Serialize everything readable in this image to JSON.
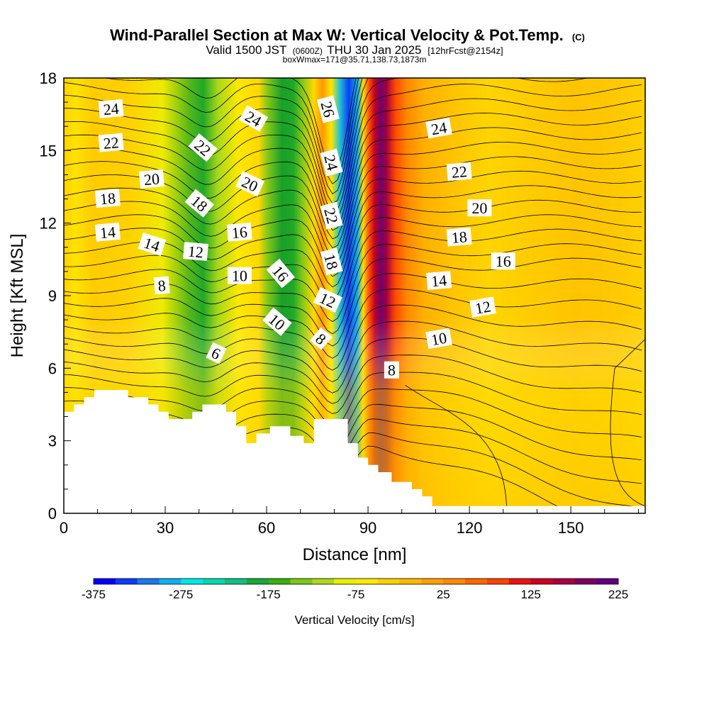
{
  "chart_data": {
    "type": "contour_cross_section",
    "title": "Wind-Parallel Section at Max W: Vertical Velocity & Pot.Temp.",
    "title_mark": "(C)",
    "subtitle": {
      "prefix": "Valid 1500 JST",
      "utc": "(0600Z)",
      "date": "THU 30 Jan 2025",
      "forecast": "[12hrFcst@2154z]"
    },
    "info_line": "boxWmax=171@35.71,138.73,1873m",
    "xlabel": "Distance [nm]",
    "ylabel": "Height [Kft MSL]",
    "xlim": [
      0,
      172
    ],
    "ylim": [
      0,
      18
    ],
    "x_ticks": [
      0,
      30,
      60,
      90,
      120,
      150
    ],
    "y_ticks": [
      0,
      3,
      6,
      9,
      12,
      15,
      18
    ],
    "colorbar": {
      "label": "Vertical Velocity [cm/s]",
      "tick_labels": [
        "-375",
        "-275",
        "-175",
        "-75",
        "25",
        "125",
        "225"
      ],
      "colors": [
        "#0000ff",
        "#0a3cf5",
        "#1a78f0",
        "#10b0f0",
        "#00e8e8",
        "#00d8b0",
        "#10c080",
        "#18a838",
        "#38b010",
        "#78c818",
        "#b0d818",
        "#e8f000",
        "#ffea00",
        "#ffd000",
        "#ffb800",
        "#ffa000",
        "#ff8800",
        "#ff6600",
        "#ff4400",
        "#ee1010",
        "#cc0020",
        "#a80040",
        "#800060",
        "#600080"
      ]
    },
    "theta_contour_labels": [
      {
        "text": "24",
        "x": 14,
        "y": 16.7,
        "rot": -5
      },
      {
        "text": "22",
        "x": 14,
        "y": 15.3,
        "rot": -5
      },
      {
        "text": "20",
        "x": 26,
        "y": 13.8,
        "rot": -5
      },
      {
        "text": "18",
        "x": 13,
        "y": 13.0,
        "rot": -5
      },
      {
        "text": "14",
        "x": 13,
        "y": 11.6,
        "rot": -5
      },
      {
        "text": "14",
        "x": 26,
        "y": 11.1,
        "rot": 18
      },
      {
        "text": "8",
        "x": 29,
        "y": 9.4,
        "rot": -5
      },
      {
        "text": "24",
        "x": 56,
        "y": 16.3,
        "rot": 30
      },
      {
        "text": "22",
        "x": 41,
        "y": 15.1,
        "rot": 40
      },
      {
        "text": "20",
        "x": 55,
        "y": 13.6,
        "rot": 25
      },
      {
        "text": "18",
        "x": 40,
        "y": 12.8,
        "rot": 40
      },
      {
        "text": "16",
        "x": 52,
        "y": 11.6,
        "rot": -5
      },
      {
        "text": "12",
        "x": 39,
        "y": 10.8,
        "rot": 5
      },
      {
        "text": "10",
        "x": 52,
        "y": 9.8,
        "rot": 0
      },
      {
        "text": "16",
        "x": 64,
        "y": 9.9,
        "rot": 50
      },
      {
        "text": "10",
        "x": 63,
        "y": 7.9,
        "rot": 40
      },
      {
        "text": "6",
        "x": 45,
        "y": 6.6,
        "rot": 25
      },
      {
        "text": "26",
        "x": 78,
        "y": 16.7,
        "rot": 75
      },
      {
        "text": "24",
        "x": 79,
        "y": 14.5,
        "rot": 75
      },
      {
        "text": "22",
        "x": 79,
        "y": 12.3,
        "rot": 75
      },
      {
        "text": "18",
        "x": 79,
        "y": 10.4,
        "rot": 75
      },
      {
        "text": "12",
        "x": 78,
        "y": 8.8,
        "rot": 25
      },
      {
        "text": "8",
        "x": 76,
        "y": 7.2,
        "rot": 40
      },
      {
        "text": "24",
        "x": 111,
        "y": 15.9,
        "rot": -10
      },
      {
        "text": "22",
        "x": 117,
        "y": 14.1,
        "rot": -5
      },
      {
        "text": "20",
        "x": 123,
        "y": 12.6,
        "rot": 0
      },
      {
        "text": "18",
        "x": 117,
        "y": 11.4,
        "rot": -5
      },
      {
        "text": "16",
        "x": 130,
        "y": 10.4,
        "rot": 0
      },
      {
        "text": "14",
        "x": 111,
        "y": 9.6,
        "rot": -5
      },
      {
        "text": "12",
        "x": 124,
        "y": 8.5,
        "rot": -10
      },
      {
        "text": "10",
        "x": 111,
        "y": 7.2,
        "rot": -10
      },
      {
        "text": "8",
        "x": 97,
        "y": 5.9,
        "rot": 0
      }
    ],
    "terrain_kft": [
      [
        0,
        4.2
      ],
      [
        3,
        4.2
      ],
      [
        3,
        4.5
      ],
      [
        6,
        4.5
      ],
      [
        6,
        4.8
      ],
      [
        9,
        4.8
      ],
      [
        9,
        5.1
      ],
      [
        19,
        5.1
      ],
      [
        19,
        4.8
      ],
      [
        25,
        4.8
      ],
      [
        25,
        4.5
      ],
      [
        28,
        4.5
      ],
      [
        28,
        4.2
      ],
      [
        31,
        4.2
      ],
      [
        31,
        3.9
      ],
      [
        38,
        3.9
      ],
      [
        38,
        4.2
      ],
      [
        41,
        4.2
      ],
      [
        41,
        4.5
      ],
      [
        48,
        4.5
      ],
      [
        48,
        4.2
      ],
      [
        51,
        4.2
      ],
      [
        51,
        3.6
      ],
      [
        54,
        3.6
      ],
      [
        54,
        2.9
      ],
      [
        57,
        2.9
      ],
      [
        57,
        3.3
      ],
      [
        61,
        3.3
      ],
      [
        61,
        3.6
      ],
      [
        67,
        3.6
      ],
      [
        67,
        3.2
      ],
      [
        71,
        3.2
      ],
      [
        71,
        2.9
      ],
      [
        74,
        2.9
      ],
      [
        74,
        3.9
      ],
      [
        84,
        3.9
      ],
      [
        84,
        2.9
      ],
      [
        87,
        2.9
      ],
      [
        87,
        2.3
      ],
      [
        90,
        2.3
      ],
      [
        90,
        2.0
      ],
      [
        93,
        2.0
      ],
      [
        93,
        1.7
      ],
      [
        97,
        1.7
      ],
      [
        97,
        1.3
      ],
      [
        103,
        1.3
      ],
      [
        103,
        1.0
      ],
      [
        106,
        1.0
      ],
      [
        106,
        0.7
      ],
      [
        109,
        0.7
      ],
      [
        109,
        0.3
      ],
      [
        172,
        0.3
      ]
    ]
  }
}
